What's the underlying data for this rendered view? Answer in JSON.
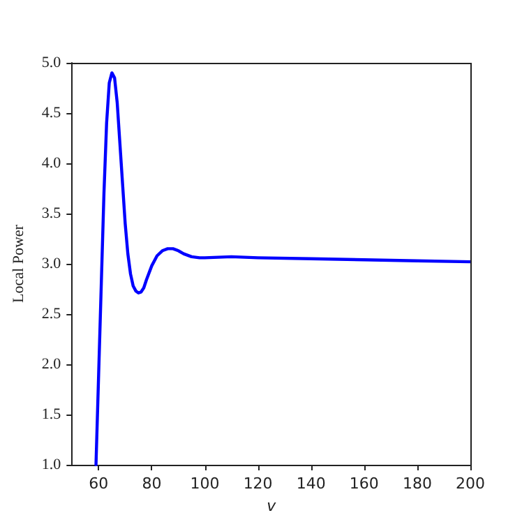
{
  "chart_data": {
    "type": "line",
    "xlabel": "v",
    "ylabel": "Local Power",
    "xlim": [
      50,
      200
    ],
    "ylim": [
      1.0,
      5.0
    ],
    "xticks": [
      60,
      80,
      100,
      120,
      140,
      160,
      180,
      200
    ],
    "yticks": [
      {
        "value": 1.0,
        "label": "1.0"
      },
      {
        "value": 1.5,
        "label": "1.5"
      },
      {
        "value": 2.0,
        "label": "2.0"
      },
      {
        "value": 2.5,
        "label": "2.5"
      },
      {
        "value": 3.0,
        "label": "3.0"
      },
      {
        "value": 3.5,
        "label": "3.5"
      },
      {
        "value": 4.0,
        "label": "4.0"
      },
      {
        "value": 4.5,
        "label": "4.5"
      },
      {
        "value": 5.0,
        "label": "5.0"
      }
    ],
    "grid": false,
    "marker": "none",
    "line_style": "solid",
    "series": [
      {
        "color": "#0000ff",
        "x": [
          59,
          60,
          61,
          62,
          63,
          64,
          65,
          66,
          67,
          68,
          69,
          70,
          71,
          72,
          73,
          74,
          75,
          76,
          77,
          78,
          80,
          82,
          84,
          86,
          88,
          90,
          92,
          95,
          98,
          100,
          110,
          120,
          140,
          160,
          180,
          200
        ],
        "values": [
          1.0,
          1.9,
          2.8,
          3.7,
          4.4,
          4.8,
          4.9,
          4.85,
          4.6,
          4.2,
          3.8,
          3.4,
          3.1,
          2.9,
          2.78,
          2.73,
          2.71,
          2.72,
          2.76,
          2.84,
          2.98,
          3.08,
          3.13,
          3.15,
          3.15,
          3.13,
          3.1,
          3.07,
          3.06,
          3.06,
          3.07,
          3.06,
          3.05,
          3.04,
          3.03,
          3.02
        ]
      }
    ]
  }
}
